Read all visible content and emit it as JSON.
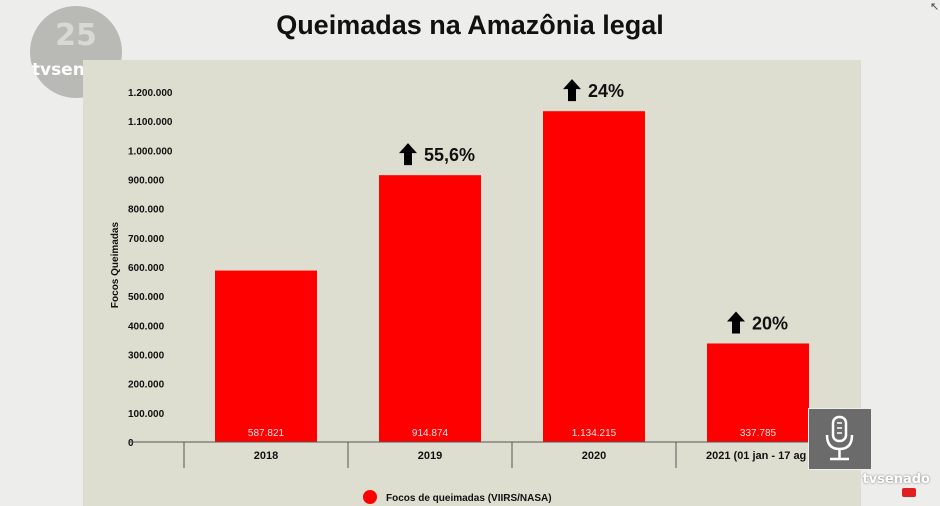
{
  "title": "Queimadas na Amazônia legal",
  "logo": {
    "number": "25",
    "text": "tvsenado"
  },
  "corner_logo": "tvsenado",
  "colors": {
    "bar": "#ff0000",
    "panel": "#deded0",
    "background": "#ededeb"
  },
  "icons": {
    "arrow": "up-arrow-icon",
    "mic": "microphone-icon"
  },
  "chart_data": {
    "type": "bar",
    "ylabel": "Focos Queimadas",
    "ylim": [
      0,
      1200000
    ],
    "yticks": [
      "0",
      "100.000",
      "200.000",
      "300.000",
      "400.000",
      "500.000",
      "600.000",
      "700.000",
      "800.000",
      "900.000",
      "1.000.000",
      "1.100.000",
      "1.200.000"
    ],
    "categories": [
      "2018",
      "2019",
      "2020",
      "2021 (01 jan - 17 ag"
    ],
    "values": [
      587821,
      914874,
      1134215,
      337785
    ],
    "data_labels": [
      "587.821",
      "914.874",
      "1.134.215",
      "337.785"
    ],
    "annotations": [
      "",
      "55,6%",
      "24%",
      "20%"
    ],
    "series": [
      {
        "name": "Focos de queimadas (VIIRS/NASA)",
        "values": [
          587821,
          914874,
          1134215,
          337785
        ]
      }
    ],
    "legend": "bottom"
  }
}
